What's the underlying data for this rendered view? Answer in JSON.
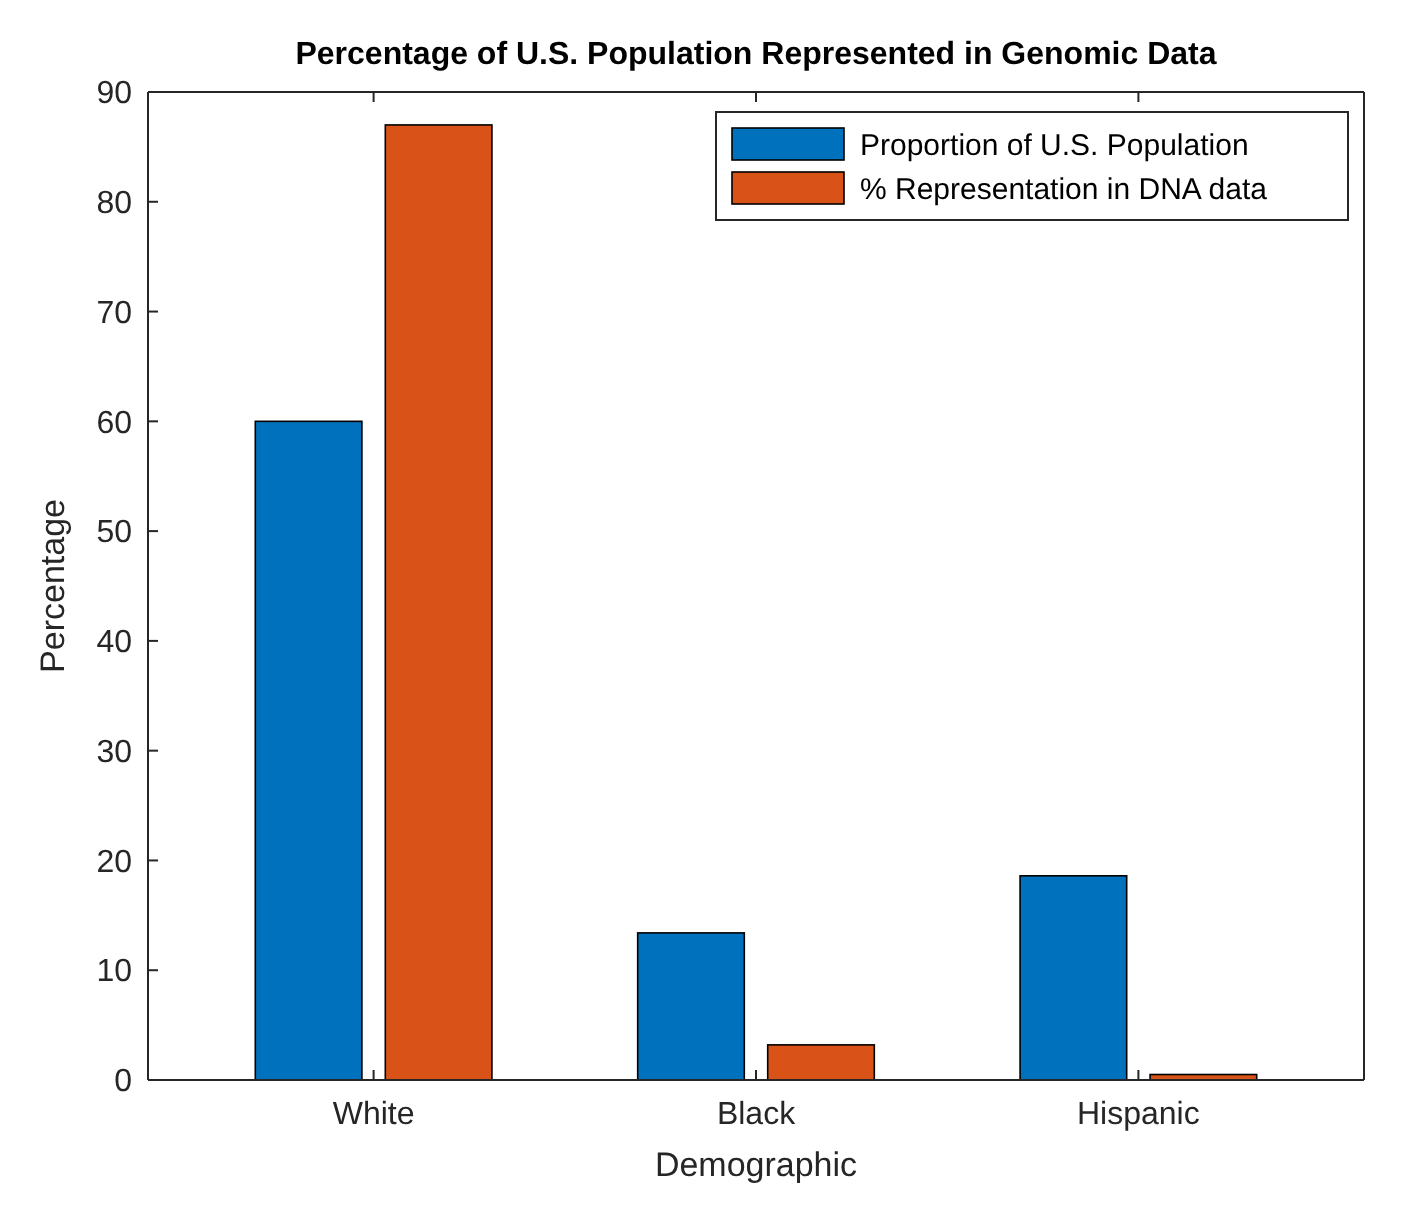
{
  "chart_data": {
    "type": "bar",
    "title": "Percentage of U.S. Population Represented in Genomic Data",
    "xlabel": "Demographic",
    "ylabel": "Percentage",
    "categories": [
      "White",
      "Black",
      "Hispanic"
    ],
    "series": [
      {
        "name": "Proportion of U.S. Population",
        "color": "#0072bd",
        "values": [
          60,
          13.4,
          18.6
        ]
      },
      {
        "name": "% Representation in DNA data",
        "color": "#d95319",
        "values": [
          87,
          3.2,
          0.5
        ]
      }
    ],
    "ylim": [
      0,
      90
    ],
    "yticks": [
      0,
      10,
      20,
      30,
      40,
      50,
      60,
      70,
      80,
      90
    ],
    "legend": "top right"
  }
}
